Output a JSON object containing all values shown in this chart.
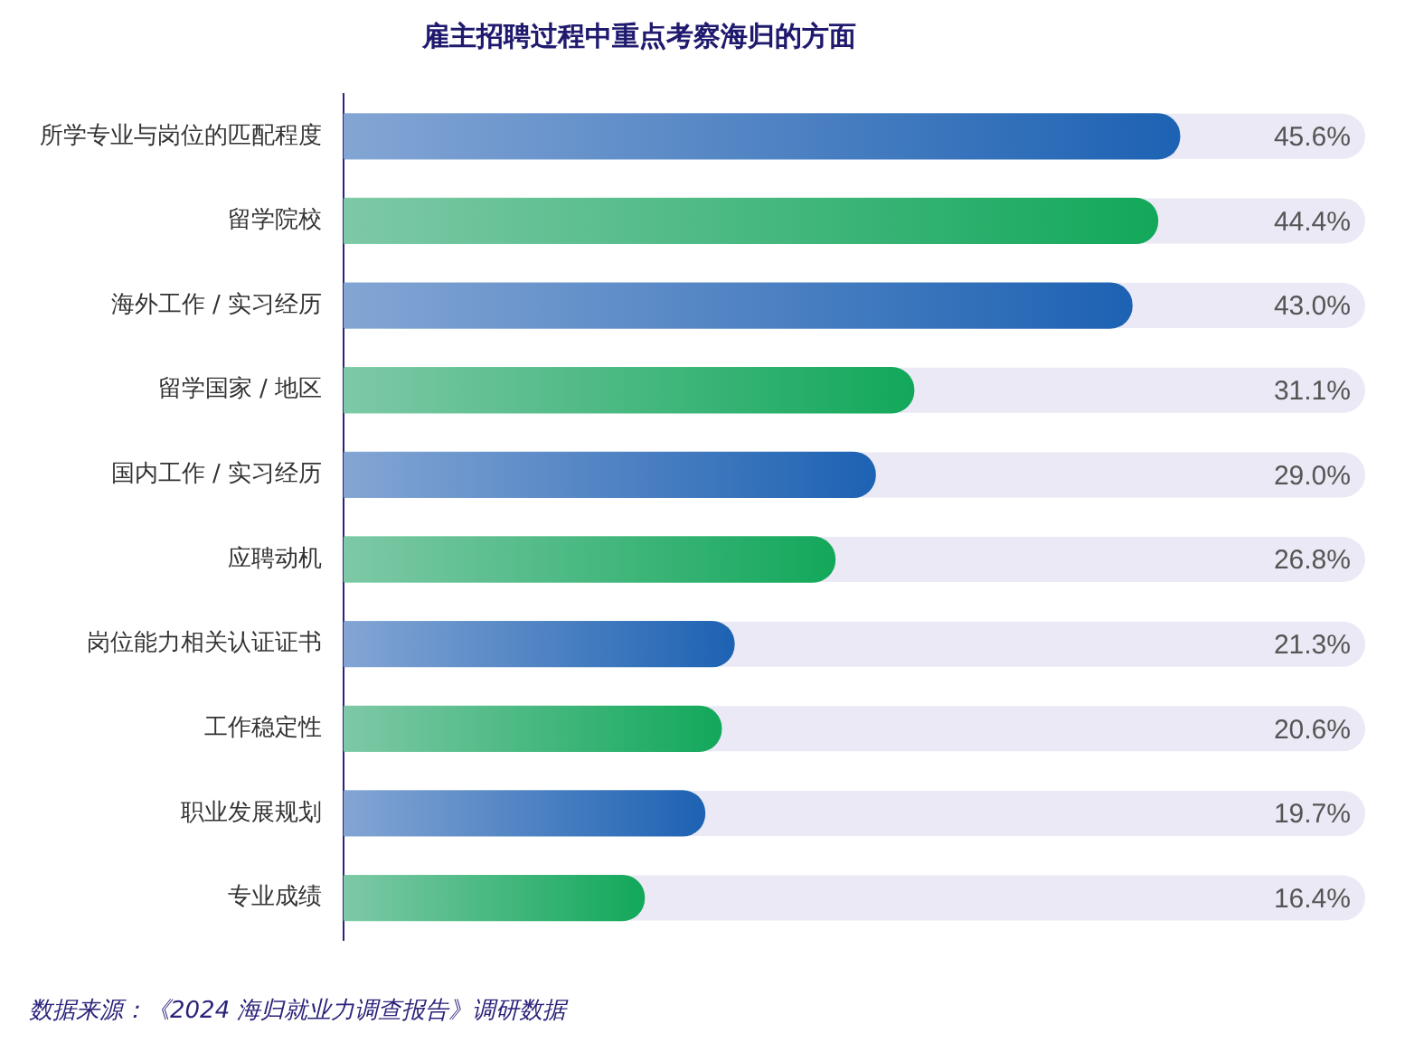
{
  "chart_data": {
    "type": "bar",
    "orientation": "horizontal",
    "title": "雇主招聘过程中重点考察海归的方面",
    "categories": [
      "所学专业与岗位的匹配程度",
      "留学院校",
      "海外工作 / 实习经历",
      "留学国家 / 地区",
      "国内工作 / 实习经历",
      "应聘动机",
      "岗位能力相关认证证书",
      "工作稳定性",
      "职业发展规划",
      "专业成绩"
    ],
    "values": [
      45.6,
      44.4,
      43.0,
      31.1,
      29.0,
      26.8,
      21.3,
      20.6,
      19.7,
      16.4
    ],
    "value_labels": [
      "45.6%",
      "44.4%",
      "43.0%",
      "31.1%",
      "29.0%",
      "26.8%",
      "21.3%",
      "20.6%",
      "19.7%",
      "16.4%"
    ],
    "colors": [
      "#1d62b3",
      "#12a85a",
      "#1d62b3",
      "#12a85a",
      "#1d62b3",
      "#12a85a",
      "#1d62b3",
      "#12a85a",
      "#1d62b3",
      "#12a85a"
    ],
    "annotations": [
      "数据来源：《2024 海归就业力调查报告》调研数据"
    ]
  }
}
